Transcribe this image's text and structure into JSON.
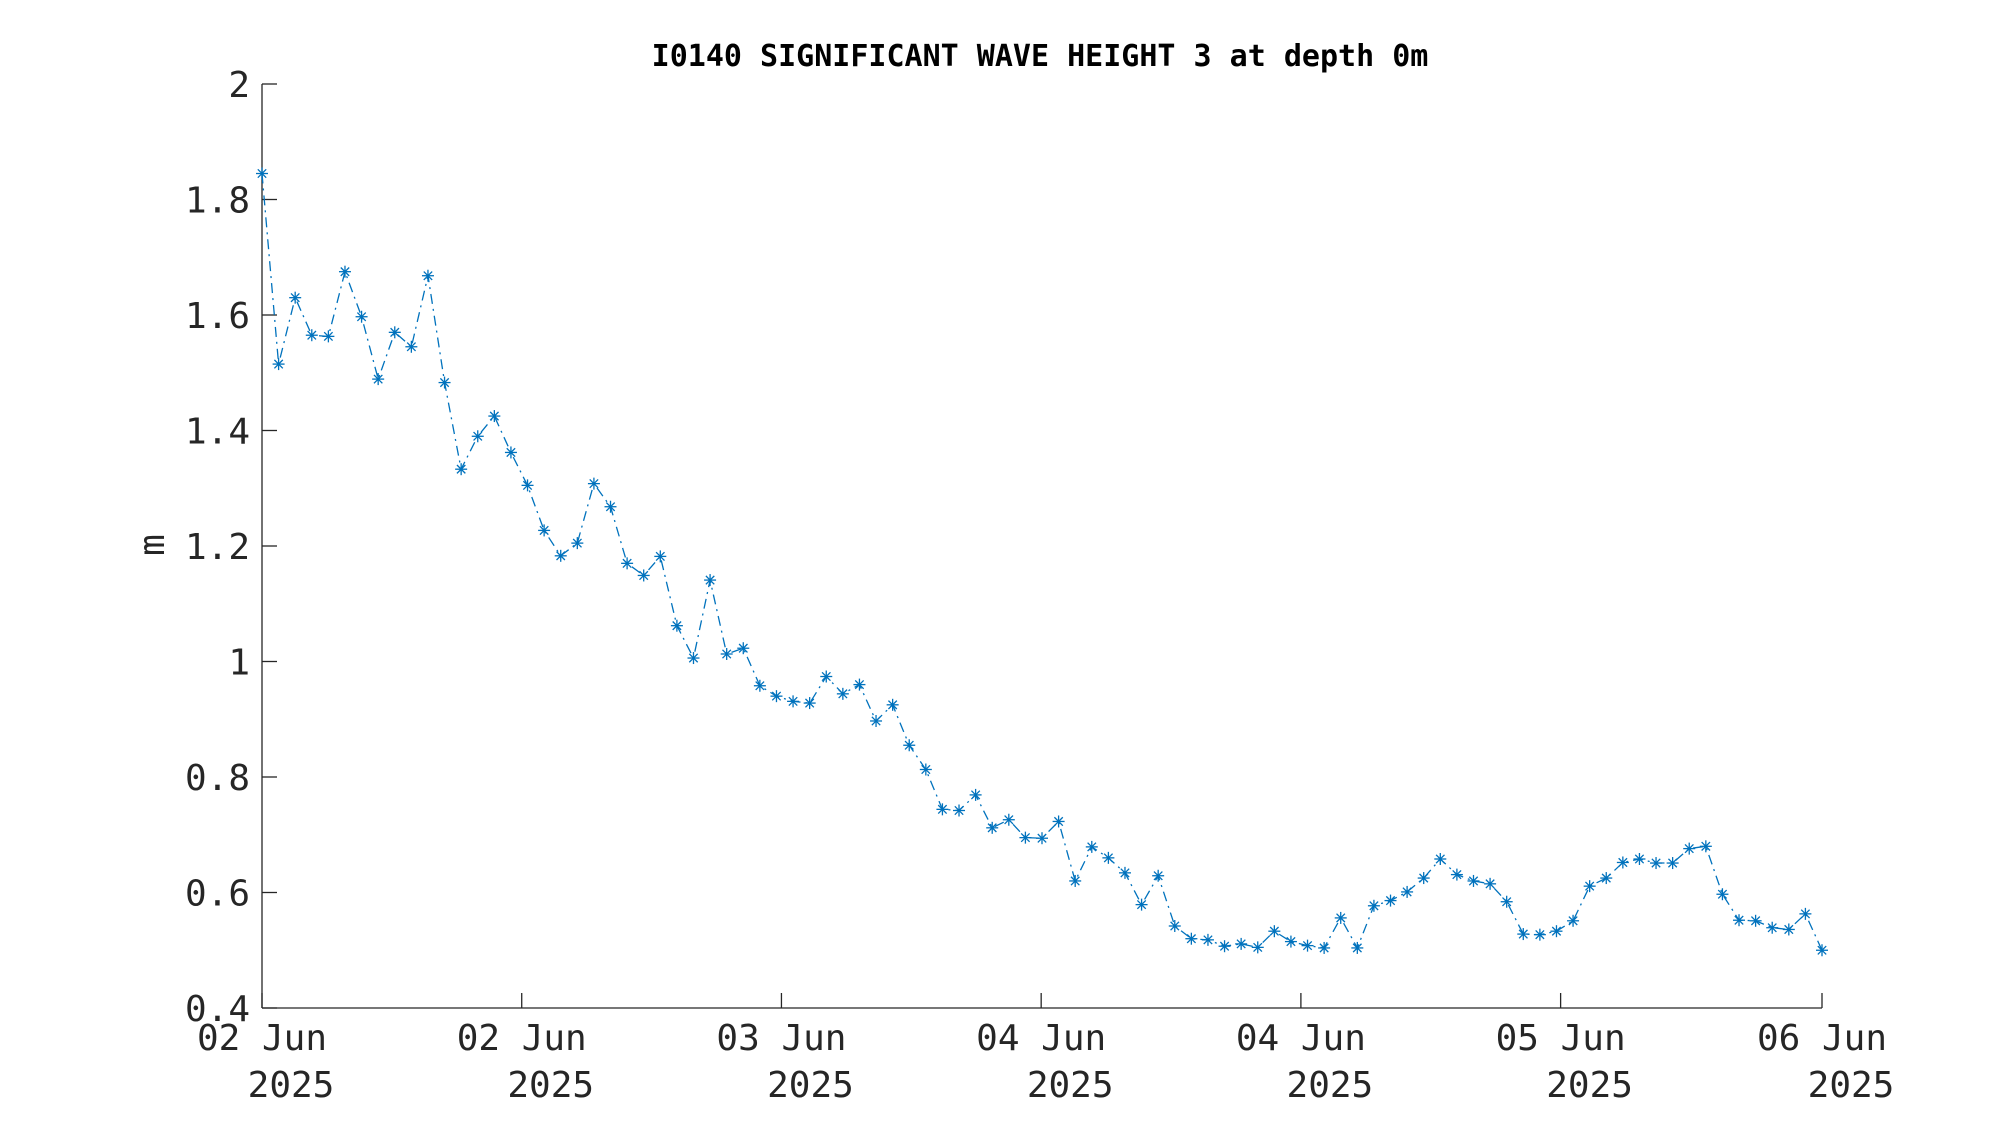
{
  "chart_data": {
    "type": "line",
    "title": "I0140 SIGNIFICANT WAVE HEIGHT 3 at depth 0m",
    "xlabel": "",
    "ylabel": "m",
    "ylim": [
      0.4,
      2.0
    ],
    "xlim_index": [
      0,
      94
    ],
    "yticks": [
      "0.4",
      "0.6",
      "0.8",
      "1",
      "1.2",
      "1.4",
      "1.6",
      "1.8",
      "2"
    ],
    "xticks": [
      {
        "at": 0,
        "line1": "02 Jun",
        "line2": "2025"
      },
      {
        "at": 15.65,
        "line1": "02 Jun",
        "line2": "2025"
      },
      {
        "at": 31.3,
        "line1": "03 Jun",
        "line2": "2025"
      },
      {
        "at": 46.95,
        "line1": "04 Jun",
        "line2": "2025"
      },
      {
        "at": 62.6,
        "line1": "04 Jun",
        "line2": "2025"
      },
      {
        "at": 78.25,
        "line1": "05 Jun",
        "line2": "2025"
      },
      {
        "at": 94,
        "line1": "06 Jun",
        "line2": "2025"
      }
    ],
    "series": [
      {
        "color": "#0072BD",
        "marker": "asterisk",
        "line_style": "dash-dot",
        "values": [
          1.845,
          1.515,
          1.63,
          1.565,
          1.563,
          1.675,
          1.597,
          1.489,
          1.57,
          1.545,
          1.668,
          1.483,
          1.333,
          1.39,
          1.425,
          1.362,
          1.305,
          1.227,
          1.183,
          1.205,
          1.308,
          1.268,
          1.17,
          1.149,
          1.182,
          1.062,
          1.006,
          1.141,
          1.013,
          1.023,
          0.958,
          0.94,
          0.931,
          0.928,
          0.974,
          0.944,
          0.96,
          0.897,
          0.925,
          0.855,
          0.813,
          0.744,
          0.742,
          0.769,
          0.712,
          0.726,
          0.695,
          0.694,
          0.723,
          0.62,
          0.679,
          0.66,
          0.634,
          0.579,
          0.629,
          0.542,
          0.52,
          0.518,
          0.507,
          0.511,
          0.505,
          0.533,
          0.515,
          0.508,
          0.504,
          0.556,
          0.504,
          0.577,
          0.586,
          0.601,
          0.625,
          0.658,
          0.631,
          0.62,
          0.615,
          0.584,
          0.528,
          0.527,
          0.533,
          0.551,
          0.611,
          0.625,
          0.652,
          0.658,
          0.651,
          0.651,
          0.676,
          0.68,
          0.597,
          0.552,
          0.551,
          0.539,
          0.536,
          0.563,
          0.5
        ]
      }
    ],
    "grid": false,
    "legend": "none"
  }
}
